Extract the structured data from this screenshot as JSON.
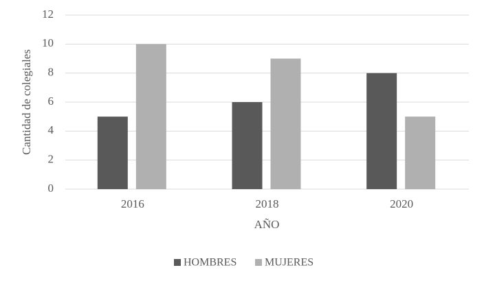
{
  "chart_data": {
    "type": "bar",
    "x_label": "AÑO",
    "y_label": "Cantidad de colegiales",
    "categories": [
      "2016",
      "2018",
      "2020"
    ],
    "series": [
      {
        "name": "HOMBRES",
        "color": "#595959",
        "values": [
          5,
          6,
          8
        ]
      },
      {
        "name": "MUJERES",
        "color": "#b0b0b0",
        "values": [
          10,
          9,
          5
        ]
      }
    ],
    "ylim": [
      0,
      12
    ],
    "yticks": [
      0,
      2,
      4,
      6,
      8,
      10,
      12
    ],
    "grid": true,
    "legend": "bottom"
  }
}
